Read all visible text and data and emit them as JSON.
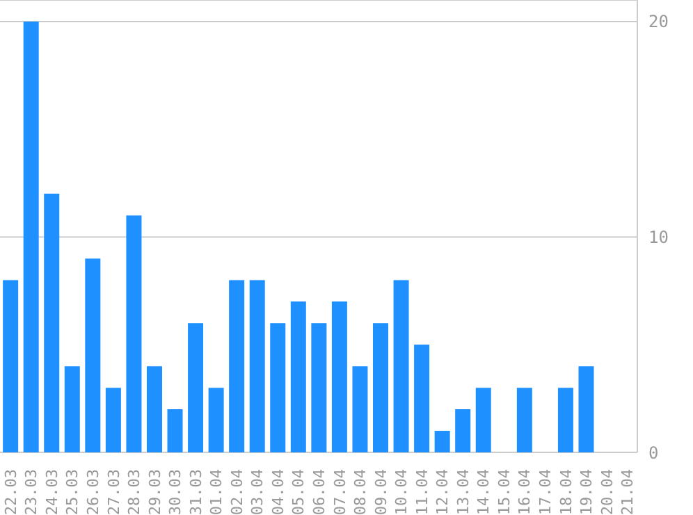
{
  "chart_data": {
    "type": "bar",
    "categories": [
      "22.03",
      "23.03",
      "24.03",
      "25.03",
      "26.03",
      "27.03",
      "28.03",
      "29.03",
      "30.03",
      "31.03",
      "01.04",
      "02.04",
      "03.04",
      "04.04",
      "05.04",
      "06.04",
      "07.04",
      "08.04",
      "09.04",
      "10.04",
      "11.04",
      "12.04",
      "13.04",
      "14.04",
      "15.04",
      "16.04",
      "17.04",
      "18.04",
      "19.04",
      "20.04",
      "21.04"
    ],
    "values": [
      8,
      20,
      12,
      4,
      9,
      3,
      11,
      4,
      2,
      6,
      3,
      8,
      8,
      6,
      7,
      6,
      7,
      4,
      6,
      8,
      5,
      1,
      2,
      3,
      0,
      3,
      0,
      3,
      4,
      0,
      0
    ],
    "color": "#1e90ff",
    "ylim": [
      0,
      21
    ],
    "yticks": [
      0,
      10,
      20
    ],
    "grid": "y"
  }
}
